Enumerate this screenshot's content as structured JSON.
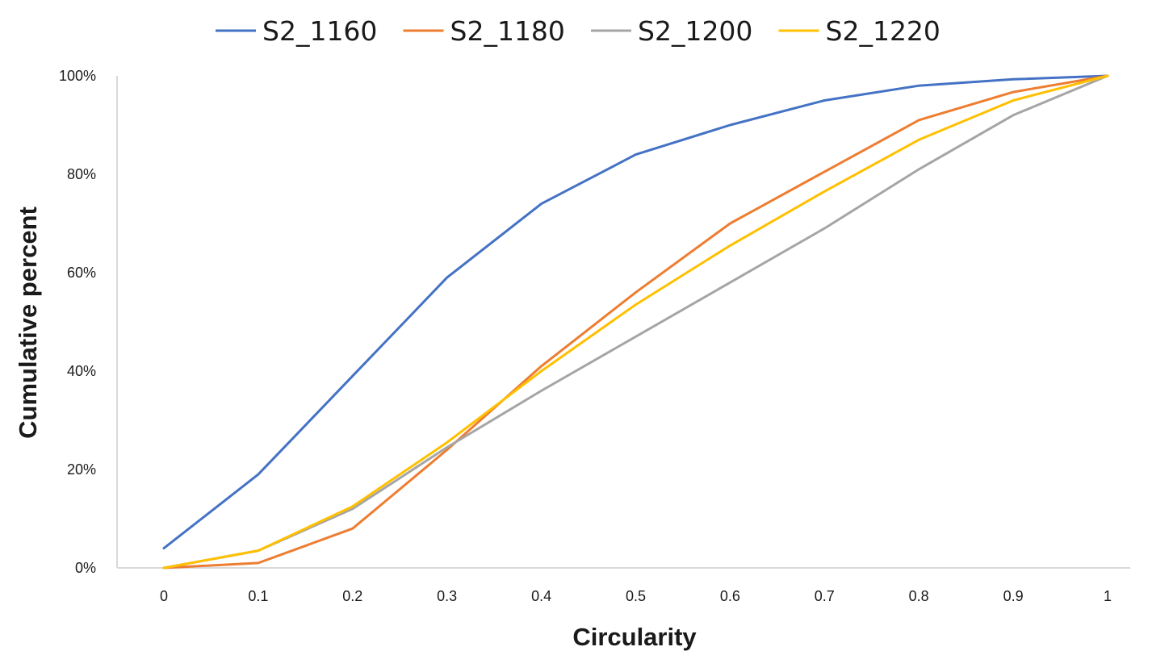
{
  "chart_data": {
    "type": "line",
    "title": "",
    "xlabel": "Circularity",
    "ylabel": "Cumulative percent",
    "x": [
      0,
      0.1,
      0.2,
      0.3,
      0.4,
      0.5,
      0.6,
      0.7,
      0.8,
      0.9,
      1
    ],
    "x_tick_labels": [
      "0",
      "0.1",
      "0.2",
      "0.3",
      "0.4",
      "0.5",
      "0.6",
      "0.7",
      "0.8",
      "0.9",
      "1"
    ],
    "y_ticks": [
      0,
      20,
      40,
      60,
      80,
      100
    ],
    "y_tick_labels": [
      "0%",
      "20%",
      "40%",
      "60%",
      "80%",
      "100%"
    ],
    "xlim": [
      0,
      1
    ],
    "ylim": [
      0,
      100
    ],
    "grid": false,
    "legend_position": "top",
    "series": [
      {
        "name": "S2_1160",
        "color": "#4472C4",
        "values": [
          4,
          19,
          39,
          59,
          74,
          84,
          90,
          95,
          98,
          99.3,
          100
        ]
      },
      {
        "name": "S2_1180",
        "color": "#ED7D31",
        "values": [
          0,
          1,
          8,
          24,
          41,
          56,
          70,
          80.5,
          91,
          96.7,
          100
        ]
      },
      {
        "name": "S2_1200",
        "color": "#A5A5A5",
        "values": [
          0,
          3.5,
          12,
          24.5,
          36,
          47,
          58,
          69,
          81,
          92,
          100
        ]
      },
      {
        "name": "S2_1220",
        "color": "#FFC000",
        "values": [
          0,
          3.5,
          12.5,
          25.5,
          40,
          53.5,
          65.5,
          76.5,
          87,
          95,
          100
        ]
      }
    ]
  }
}
